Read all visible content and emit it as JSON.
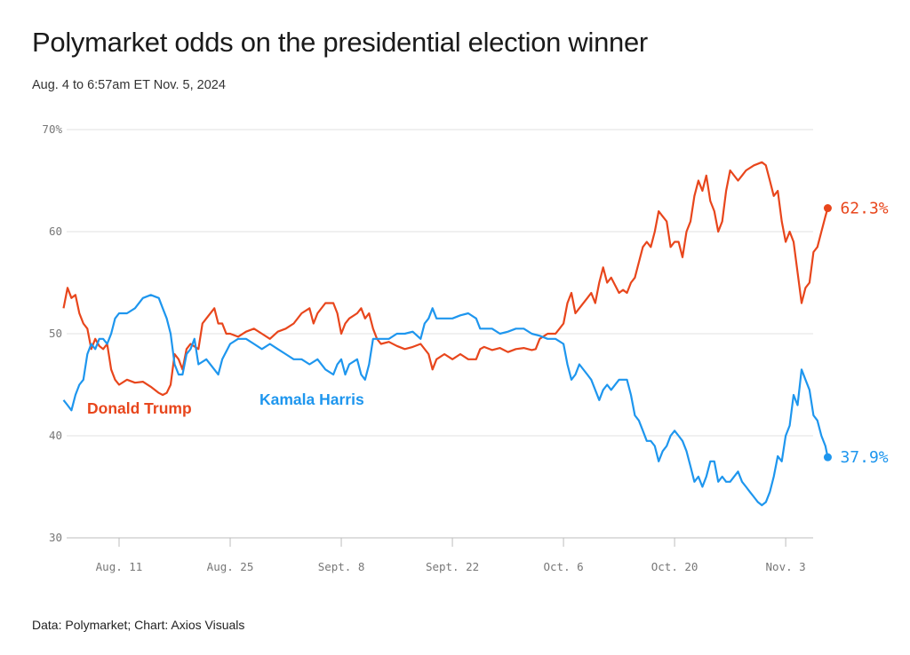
{
  "chart_data": {
    "type": "line",
    "title": "Polymarket odds on the presidential election winner",
    "subtitle": "Aug. 4 to 6:57am ET Nov. 5, 2024",
    "source": "Data: Polymarket; Chart: Axios Visuals",
    "ylim": [
      30,
      70
    ],
    "y_ticks": [
      "70%",
      "60",
      "50",
      "40",
      "30"
    ],
    "y_tick_values": [
      70,
      60,
      50,
      40,
      30
    ],
    "x_ticks": [
      {
        "label": "Aug. 11",
        "day": 7
      },
      {
        "label": "Aug. 25",
        "day": 21
      },
      {
        "label": "Sept. 8",
        "day": 35
      },
      {
        "label": "Sept. 22",
        "day": 49
      },
      {
        "label": "Oct. 6",
        "day": 63
      },
      {
        "label": "Oct. 20",
        "day": 77
      },
      {
        "label": "Nov. 3",
        "day": 91
      }
    ],
    "grid": true,
    "colors": {
      "trump": "#e8461c",
      "harris": "#1e96ee"
    },
    "series": [
      {
        "name": "Donald Trump",
        "end_label": "62.3%",
        "points": [
          [
            0,
            52.5
          ],
          [
            0.5,
            54.5
          ],
          [
            1,
            53.5
          ],
          [
            1.5,
            53.8
          ],
          [
            2,
            52
          ],
          [
            2.5,
            51
          ],
          [
            3,
            50.5
          ],
          [
            3.5,
            48.5
          ],
          [
            4,
            49.5
          ],
          [
            4.5,
            48.8
          ],
          [
            5,
            48.5
          ],
          [
            5.5,
            49
          ],
          [
            6,
            46.5
          ],
          [
            6.5,
            45.5
          ],
          [
            7,
            45
          ],
          [
            8,
            45.5
          ],
          [
            9,
            45.2
          ],
          [
            10,
            45.3
          ],
          [
            11,
            44.8
          ],
          [
            12,
            44.2
          ],
          [
            12.5,
            44
          ],
          [
            13,
            44.2
          ],
          [
            13.5,
            45
          ],
          [
            14,
            48
          ],
          [
            14.5,
            47.5
          ],
          [
            15,
            46.5
          ],
          [
            15.5,
            48.5
          ],
          [
            16,
            49
          ],
          [
            17,
            48.5
          ],
          [
            17.5,
            51
          ],
          [
            18,
            51.5
          ],
          [
            19,
            52.5
          ],
          [
            19.5,
            51
          ],
          [
            20,
            51
          ],
          [
            20.5,
            50
          ],
          [
            21,
            50
          ],
          [
            22,
            49.7
          ],
          [
            23,
            50.2
          ],
          [
            24,
            50.5
          ],
          [
            25,
            50
          ],
          [
            26,
            49.5
          ],
          [
            27,
            50.2
          ],
          [
            28,
            50.5
          ],
          [
            29,
            51
          ],
          [
            30,
            52
          ],
          [
            31,
            52.5
          ],
          [
            31.5,
            51
          ],
          [
            32,
            52
          ],
          [
            33,
            53
          ],
          [
            34,
            53
          ],
          [
            34.5,
            52
          ],
          [
            35,
            50
          ],
          [
            35.5,
            51
          ],
          [
            36,
            51.5
          ],
          [
            37,
            52
          ],
          [
            37.5,
            52.5
          ],
          [
            38,
            51.5
          ],
          [
            38.5,
            52
          ],
          [
            39,
            50.5
          ],
          [
            39.5,
            49.5
          ],
          [
            40,
            49
          ],
          [
            41,
            49.2
          ],
          [
            42,
            48.8
          ],
          [
            43,
            48.5
          ],
          [
            44,
            48.7
          ],
          [
            45,
            49
          ],
          [
            46,
            48
          ],
          [
            46.5,
            46.5
          ],
          [
            47,
            47.5
          ],
          [
            48,
            48
          ],
          [
            49,
            47.5
          ],
          [
            50,
            48
          ],
          [
            51,
            47.5
          ],
          [
            52,
            47.5
          ],
          [
            52.5,
            48.5
          ],
          [
            53,
            48.7
          ],
          [
            54,
            48.4
          ],
          [
            55,
            48.6
          ],
          [
            56,
            48.2
          ],
          [
            57,
            48.5
          ],
          [
            58,
            48.6
          ],
          [
            59,
            48.4
          ],
          [
            59.5,
            48.5
          ],
          [
            60,
            49.5
          ],
          [
            61,
            50
          ],
          [
            62,
            50
          ],
          [
            62.5,
            50.5
          ],
          [
            63,
            51
          ],
          [
            63.5,
            53
          ],
          [
            64,
            54
          ],
          [
            64.5,
            52
          ],
          [
            65,
            52.5
          ],
          [
            66,
            53.5
          ],
          [
            66.5,
            54
          ],
          [
            67,
            53
          ],
          [
            67.5,
            55
          ],
          [
            68,
            56.5
          ],
          [
            68.5,
            55
          ],
          [
            69,
            55.5
          ],
          [
            70,
            54
          ],
          [
            70.5,
            54.3
          ],
          [
            71,
            54
          ],
          [
            71.5,
            55
          ],
          [
            72,
            55.5
          ],
          [
            72.5,
            57
          ],
          [
            73,
            58.5
          ],
          [
            73.5,
            59
          ],
          [
            74,
            58.5
          ],
          [
            74.5,
            60
          ],
          [
            75,
            62
          ],
          [
            75.5,
            61.5
          ],
          [
            76,
            61
          ],
          [
            76.5,
            58.5
          ],
          [
            77,
            59
          ],
          [
            77.5,
            59
          ],
          [
            78,
            57.5
          ],
          [
            78.5,
            60
          ],
          [
            79,
            61
          ],
          [
            79.5,
            63.5
          ],
          [
            80,
            65
          ],
          [
            80.5,
            64
          ],
          [
            81,
            65.5
          ],
          [
            81.5,
            63
          ],
          [
            82,
            62
          ],
          [
            82.5,
            60
          ],
          [
            83,
            61
          ],
          [
            83.5,
            64
          ],
          [
            84,
            66
          ],
          [
            85,
            65
          ],
          [
            85.5,
            65.5
          ],
          [
            86,
            66
          ],
          [
            87,
            66.5
          ],
          [
            88,
            66.8
          ],
          [
            88.5,
            66.5
          ],
          [
            89,
            65
          ],
          [
            89.5,
            63.5
          ],
          [
            90,
            64
          ],
          [
            90.5,
            61
          ],
          [
            91,
            59
          ],
          [
            91.5,
            60
          ],
          [
            92,
            59
          ],
          [
            92.5,
            56
          ],
          [
            93,
            53
          ],
          [
            93.5,
            54.5
          ],
          [
            94,
            55
          ],
          [
            94.5,
            58
          ],
          [
            95,
            58.5
          ],
          [
            95.5,
            60
          ],
          [
            96,
            61.5
          ],
          [
            96.3,
            62.3
          ]
        ]
      },
      {
        "name": "Kamala Harris",
        "end_label": "37.9%",
        "points": [
          [
            0,
            43.5
          ],
          [
            0.5,
            43
          ],
          [
            1,
            42.5
          ],
          [
            1.5,
            44
          ],
          [
            2,
            45
          ],
          [
            2.5,
            45.5
          ],
          [
            3,
            48
          ],
          [
            3.5,
            49
          ],
          [
            4,
            48.5
          ],
          [
            4.5,
            49.5
          ],
          [
            5,
            49.5
          ],
          [
            5.5,
            49
          ],
          [
            6,
            50
          ],
          [
            6.5,
            51.5
          ],
          [
            7,
            52
          ],
          [
            8,
            52
          ],
          [
            9,
            52.5
          ],
          [
            10,
            53.5
          ],
          [
            11,
            53.8
          ],
          [
            12,
            53.5
          ],
          [
            12.5,
            52.5
          ],
          [
            13,
            51.5
          ],
          [
            13.5,
            50
          ],
          [
            14,
            47
          ],
          [
            14.5,
            46
          ],
          [
            15,
            46
          ],
          [
            15.5,
            48
          ],
          [
            16,
            48.5
          ],
          [
            16.5,
            49.5
          ],
          [
            17,
            47
          ],
          [
            18,
            47.5
          ],
          [
            19,
            46.5
          ],
          [
            19.5,
            46
          ],
          [
            20,
            47.5
          ],
          [
            21,
            49
          ],
          [
            22,
            49.5
          ],
          [
            23,
            49.5
          ],
          [
            24,
            49
          ],
          [
            25,
            48.5
          ],
          [
            26,
            49
          ],
          [
            27,
            48.5
          ],
          [
            28,
            48
          ],
          [
            29,
            47.5
          ],
          [
            30,
            47.5
          ],
          [
            31,
            47
          ],
          [
            32,
            47.5
          ],
          [
            33,
            46.5
          ],
          [
            34,
            46
          ],
          [
            34.5,
            47
          ],
          [
            35,
            47.5
          ],
          [
            35.5,
            46
          ],
          [
            36,
            47
          ],
          [
            37,
            47.5
          ],
          [
            37.5,
            46
          ],
          [
            38,
            45.5
          ],
          [
            38.5,
            47
          ],
          [
            39,
            49.5
          ],
          [
            40,
            49.5
          ],
          [
            41,
            49.5
          ],
          [
            42,
            50
          ],
          [
            43,
            50
          ],
          [
            44,
            50.2
          ],
          [
            45,
            49.5
          ],
          [
            45.5,
            51
          ],
          [
            46,
            51.5
          ],
          [
            46.5,
            52.5
          ],
          [
            47,
            51.5
          ],
          [
            48,
            51.5
          ],
          [
            49,
            51.5
          ],
          [
            50,
            51.8
          ],
          [
            51,
            52
          ],
          [
            52,
            51.5
          ],
          [
            52.5,
            50.5
          ],
          [
            53,
            50.5
          ],
          [
            54,
            50.5
          ],
          [
            55,
            50
          ],
          [
            56,
            50.2
          ],
          [
            57,
            50.5
          ],
          [
            58,
            50.5
          ],
          [
            59,
            50
          ],
          [
            60,
            49.8
          ],
          [
            61,
            49.5
          ],
          [
            62,
            49.5
          ],
          [
            63,
            49
          ],
          [
            63.5,
            47
          ],
          [
            64,
            45.5
          ],
          [
            64.5,
            46
          ],
          [
            65,
            47
          ],
          [
            66,
            46
          ],
          [
            66.5,
            45.5
          ],
          [
            67,
            44.5
          ],
          [
            67.5,
            43.5
          ],
          [
            68,
            44.5
          ],
          [
            68.5,
            45
          ],
          [
            69,
            44.5
          ],
          [
            70,
            45.5
          ],
          [
            71,
            45.5
          ],
          [
            71.5,
            44
          ],
          [
            72,
            42
          ],
          [
            72.5,
            41.5
          ],
          [
            73,
            40.5
          ],
          [
            73.5,
            39.5
          ],
          [
            74,
            39.5
          ],
          [
            74.5,
            39
          ],
          [
            75,
            37.5
          ],
          [
            75.5,
            38.5
          ],
          [
            76,
            39
          ],
          [
            76.5,
            40
          ],
          [
            77,
            40.5
          ],
          [
            77.5,
            40
          ],
          [
            78,
            39.5
          ],
          [
            78.5,
            38.5
          ],
          [
            79,
            37
          ],
          [
            79.5,
            35.5
          ],
          [
            80,
            36
          ],
          [
            80.5,
            35
          ],
          [
            81,
            36
          ],
          [
            81.5,
            37.5
          ],
          [
            82,
            37.5
          ],
          [
            82.5,
            35.5
          ],
          [
            83,
            36
          ],
          [
            83.5,
            35.5
          ],
          [
            84,
            35.5
          ],
          [
            85,
            36.5
          ],
          [
            85.5,
            35.5
          ],
          [
            86,
            35
          ],
          [
            86.5,
            34.5
          ],
          [
            87,
            34
          ],
          [
            87.5,
            33.5
          ],
          [
            88,
            33.2
          ],
          [
            88.5,
            33.5
          ],
          [
            89,
            34.5
          ],
          [
            89.5,
            36
          ],
          [
            90,
            38
          ],
          [
            90.5,
            37.5
          ],
          [
            91,
            40
          ],
          [
            91.5,
            41
          ],
          [
            92,
            44
          ],
          [
            92.5,
            43
          ],
          [
            93,
            46.5
          ],
          [
            93.5,
            45.5
          ],
          [
            94,
            44.5
          ],
          [
            94.5,
            42
          ],
          [
            95,
            41.5
          ],
          [
            95.5,
            40
          ],
          [
            96,
            39
          ],
          [
            96.3,
            37.9
          ]
        ]
      }
    ]
  }
}
